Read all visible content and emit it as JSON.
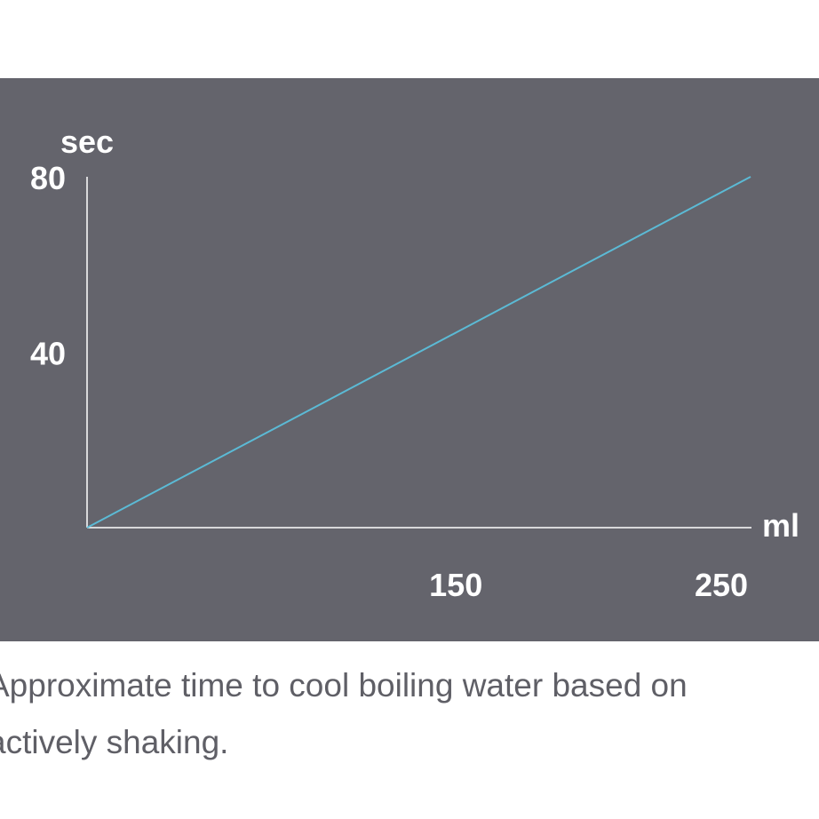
{
  "chart_data": {
    "type": "line",
    "title": "",
    "xlabel": "ml",
    "ylabel": "sec",
    "xlim": [
      0,
      250
    ],
    "ylim": [
      0,
      80
    ],
    "x_ticks": [
      150,
      250
    ],
    "y_ticks": [
      40,
      80
    ],
    "grid": false,
    "series": [
      {
        "x": [
          0,
          250
        ],
        "y": [
          0,
          80
        ],
        "color": "#5bbad5"
      }
    ]
  },
  "colors": {
    "panel_background": "#64646c",
    "axis": "#ffffff",
    "line": "#5bbad5",
    "caption_text": "#5f5f66"
  },
  "caption": "Approximate time to cool boiling water based on\nactively shaking."
}
